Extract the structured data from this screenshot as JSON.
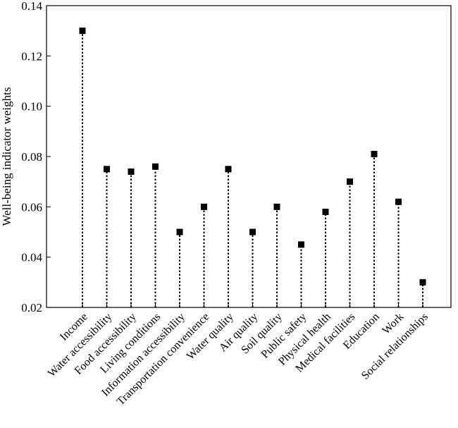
{
  "chart_data": {
    "type": "scatter",
    "style": "lollipop",
    "title": "",
    "xlabel": "",
    "ylabel": "Well-being indicator weights",
    "ylim": [
      0.02,
      0.14
    ],
    "yticks": [
      0.02,
      0.04,
      0.06,
      0.08,
      0.1,
      0.12,
      0.14
    ],
    "ytick_labels": [
      "0.02",
      "0.04",
      "0.06",
      "0.08",
      "0.10",
      "0.12",
      "0.14"
    ],
    "grid": false,
    "legend": "none",
    "categories": [
      "Income",
      "Water accessibility",
      "Food accessibility",
      "Living conditions",
      "Information accessibility",
      "Transportation convenience",
      "Water quality",
      "Air quality",
      "Soil quality",
      "Public safety",
      "Physical health",
      "Medical facilities",
      "Education",
      "Work",
      "Social relationships"
    ],
    "values": [
      0.13,
      0.075,
      0.074,
      0.076,
      0.05,
      0.06,
      0.075,
      0.05,
      0.06,
      0.045,
      0.058,
      0.07,
      0.081,
      0.062,
      0.03
    ],
    "colors": {
      "marker": "#000000",
      "stem": "#000000",
      "axis": "#000000"
    }
  }
}
